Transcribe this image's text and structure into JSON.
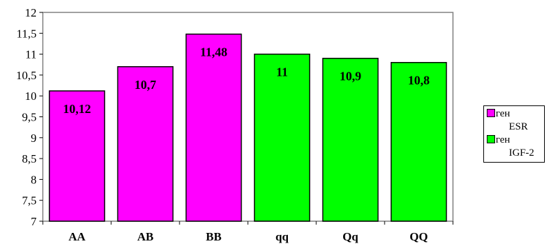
{
  "chart_data": {
    "type": "bar",
    "categories": [
      "AA",
      "AB",
      "BB",
      "qq",
      "Qq",
      "QQ"
    ],
    "values": [
      10.12,
      10.7,
      11.48,
      11,
      10.9,
      10.8
    ],
    "data_labels": [
      "10,12",
      "10,7",
      "11,48",
      "11",
      "10,9",
      "10,8"
    ],
    "bar_series": [
      0,
      0,
      0,
      1,
      1,
      1
    ],
    "ylim": [
      7,
      12
    ],
    "yticks": [
      7,
      7.5,
      8,
      8.5,
      9,
      9.5,
      10,
      10.5,
      11,
      11.5,
      12
    ],
    "ytick_labels": [
      "7",
      "7,5",
      "8",
      "8,5",
      "9",
      "9,5",
      "10",
      "10,5",
      "11",
      "11,5",
      "12"
    ],
    "grid": false,
    "legend_position": "right",
    "series": [
      {
        "name_line1": "ген",
        "name_line2": "ESR",
        "color": "#FF00FF"
      },
      {
        "name_line1": "ген",
        "name_line2": "IGF-2",
        "color": "#00FF00"
      }
    ]
  }
}
